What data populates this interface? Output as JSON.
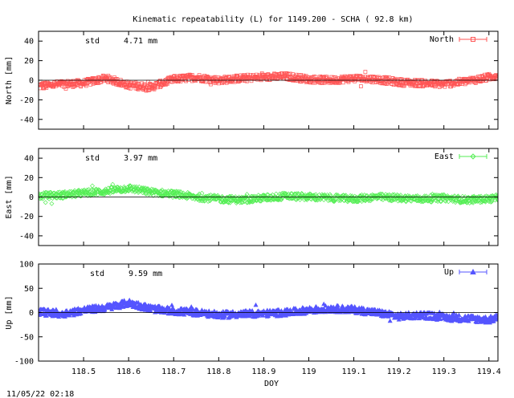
{
  "title": "Kinematic repeatability (L) for 1149.200 - SCHA  ( 92.8 km)",
  "footer_timestamp": "11/05/22 02:18",
  "chart_data": [
    {
      "type": "scatter",
      "series_name": "North",
      "ylabel": "North [mm]",
      "ylim": [
        -50,
        50
      ],
      "yticks": [
        -40,
        -20,
        0,
        20,
        40
      ],
      "std_label": "std",
      "std_value": "4.71 mm",
      "color": "#ff5555",
      "marker": "square",
      "grid": false,
      "legend_position": "top-right",
      "x": [
        118.4,
        118.45,
        118.5,
        118.55,
        118.6,
        118.65,
        118.7,
        118.75,
        118.8,
        118.85,
        118.9,
        118.95,
        119.0,
        119.05,
        119.1,
        119.15,
        119.2,
        119.25,
        119.3,
        119.35,
        119.4,
        119.42
      ],
      "y": [
        -6,
        -4,
        -3,
        2,
        -5,
        -7,
        1,
        3,
        0,
        2,
        3,
        4,
        1,
        0,
        2,
        1,
        -2,
        -3,
        -4,
        -1,
        3,
        5
      ]
    },
    {
      "type": "scatter",
      "series_name": "East",
      "ylabel": "East [mm]",
      "ylim": [
        -50,
        50
      ],
      "yticks": [
        -40,
        -20,
        0,
        20,
        40
      ],
      "std_label": "std",
      "std_value": "3.97 mm",
      "color": "#55ee55",
      "marker": "diamond",
      "grid": false,
      "legend_position": "top-right",
      "x": [
        118.4,
        118.45,
        118.5,
        118.55,
        118.6,
        118.65,
        118.7,
        118.75,
        118.8,
        118.85,
        118.9,
        118.95,
        119.0,
        119.05,
        119.1,
        119.15,
        119.2,
        119.25,
        119.3,
        119.35,
        119.4,
        119.42
      ],
      "y": [
        1,
        2,
        4,
        6,
        9,
        5,
        3,
        0,
        -2,
        -3,
        -1,
        1,
        0,
        -1,
        -2,
        0,
        -1,
        -2,
        -1,
        -3,
        -2,
        -1
      ]
    },
    {
      "type": "scatter",
      "series_name": "Up",
      "ylabel": "Up [mm]",
      "ylim": [
        -100,
        100
      ],
      "yticks": [
        -100,
        -50,
        0,
        50,
        100
      ],
      "std_label": "std",
      "std_value": "9.59 mm",
      "color": "#5555ff",
      "marker": "triangle",
      "grid": false,
      "legend_position": "top-right",
      "x": [
        118.4,
        118.45,
        118.5,
        118.55,
        118.6,
        118.65,
        118.7,
        118.75,
        118.8,
        118.85,
        118.9,
        118.95,
        119.0,
        119.05,
        119.1,
        119.15,
        119.2,
        119.25,
        119.3,
        119.35,
        119.4,
        119.42
      ],
      "y": [
        2,
        -3,
        5,
        10,
        20,
        8,
        3,
        0,
        -5,
        -3,
        -2,
        0,
        5,
        8,
        6,
        0,
        -8,
        -5,
        -10,
        -12,
        -15,
        -10
      ]
    }
  ],
  "xaxis": {
    "label": "DOY",
    "xlim": [
      118.4,
      119.42
    ],
    "ticks": [
      118.5,
      118.6,
      118.7,
      118.8,
      118.9,
      119,
      119.1,
      119.2,
      119.3,
      119.4
    ],
    "tick_labels": [
      "118.5",
      "118.6",
      "118.7",
      "118.8",
      "118.9",
      "119",
      "119.1",
      "119.2",
      "119.3",
      "119.4"
    ]
  }
}
